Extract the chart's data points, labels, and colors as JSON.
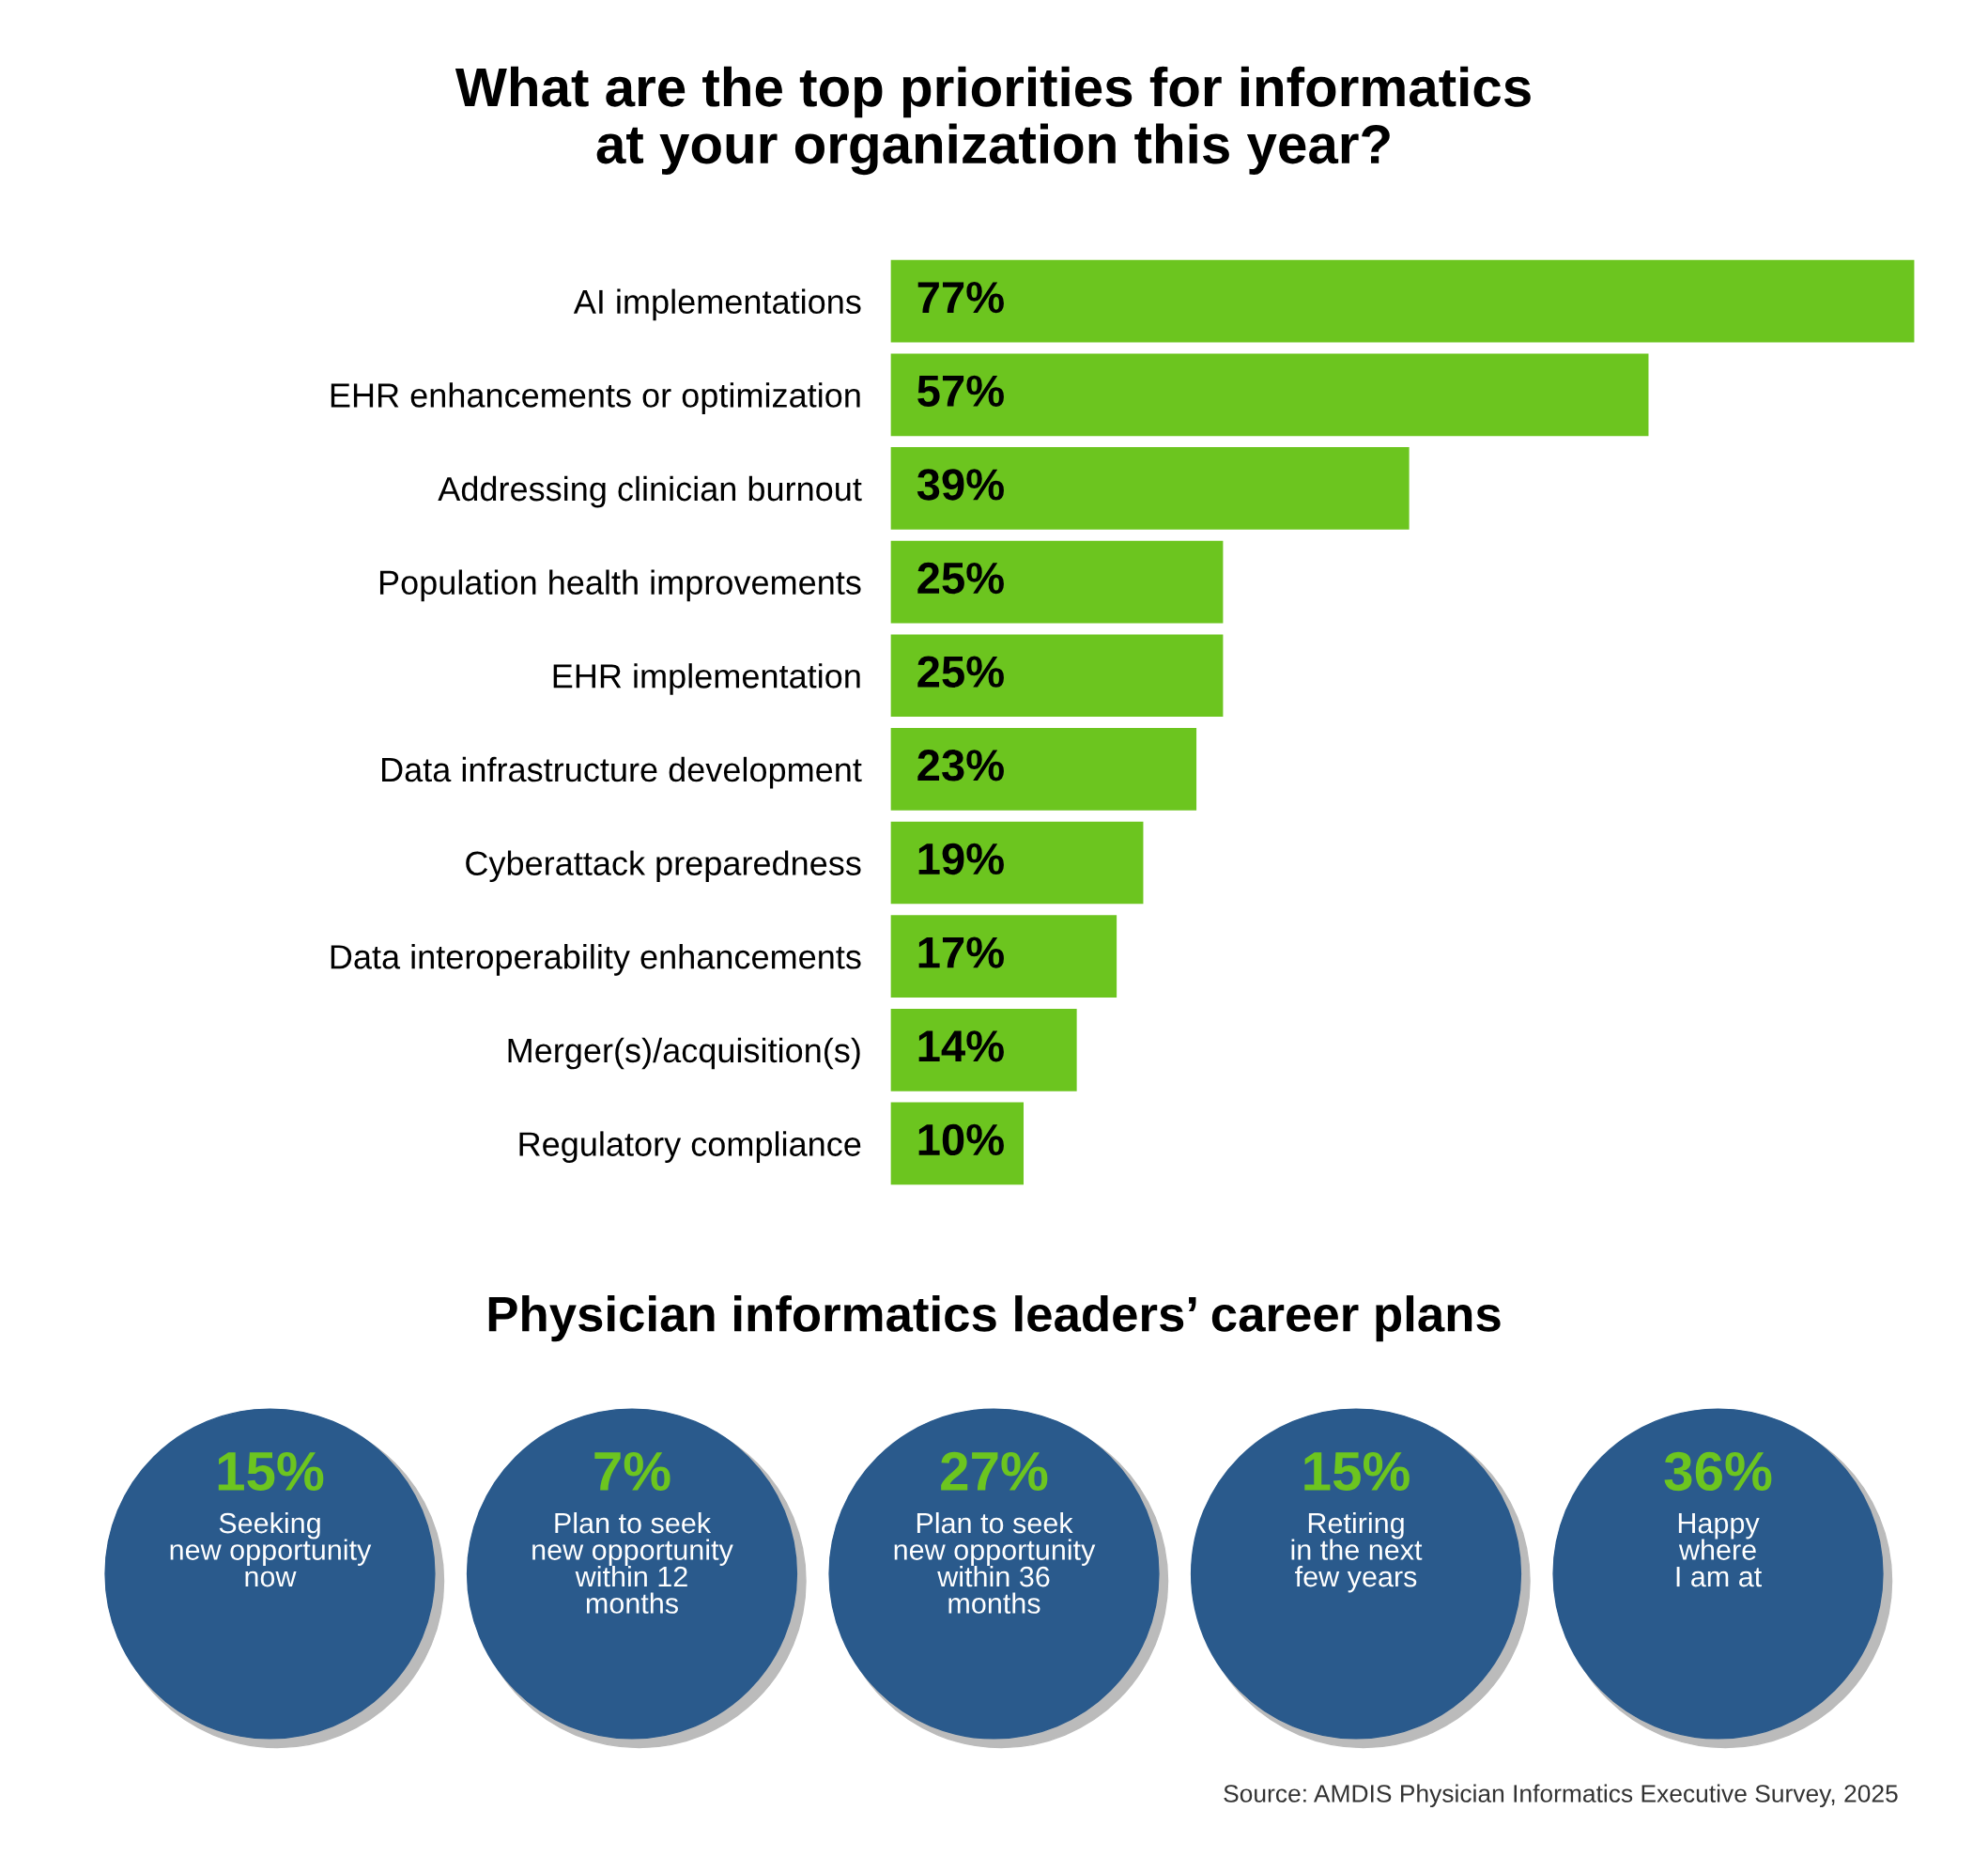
{
  "chart_data": [
    {
      "type": "bar",
      "orientation": "horizontal",
      "title": "What are the top priorities for informatics\nat your organization this year?",
      "categories": [
        "AI implementations",
        "EHR enhancements or optimization",
        "Addressing clinician burnout",
        "Population health improvements",
        "EHR implementation",
        "Data infrastructure development",
        "Cyberattack preparedness",
        "Data interoperability enhancements",
        "Merger(s)/acquisition(s)",
        "Regulatory compliance"
      ],
      "values": [
        77,
        57,
        39,
        25,
        25,
        23,
        19,
        17,
        14,
        10
      ],
      "value_labels": [
        "77%",
        "57%",
        "39%",
        "25%",
        "25%",
        "23%",
        "19%",
        "17%",
        "14%",
        "10%"
      ],
      "color": "#6cc51f",
      "xlim": [
        0,
        77
      ],
      "tick_labels": "y",
      "grid": false,
      "legend": false
    },
    {
      "type": "other",
      "title": "Physician informatics leaders’ career plans",
      "categories": [
        "Seeking\nnew opportunity\nnow",
        "Plan to seek\nnew opportunity\nwithin 12\nmonths",
        "Plan to seek\nnew opportunity\nwithin 36\nmonths",
        "Retiring\nin the next\nfew years",
        "Happy\nwhere\nI am at"
      ],
      "color": "#2a5a8c",
      "annotations": [
        "15%",
        "7%",
        "27%",
        "15%",
        "36%",
        "Source: AMDIS Physician Informatics Executive Survey, 2025"
      ]
    }
  ]
}
